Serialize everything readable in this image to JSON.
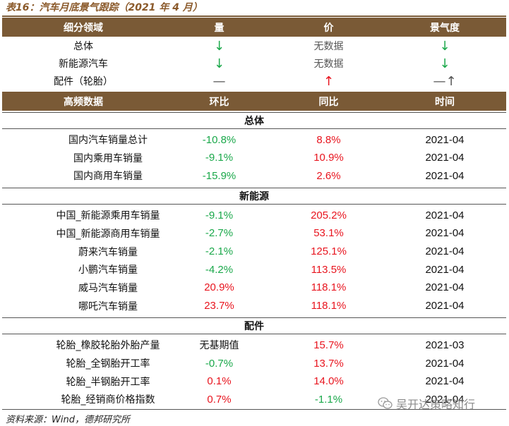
{
  "title": "表16：汽车月底景气跟踪（2021 年 4 月）",
  "top_header": [
    "细分领域",
    "量",
    "价",
    "景气度"
  ],
  "top_rows": [
    {
      "label": "总体",
      "volume": "↓",
      "volume_color": "green",
      "price": "无数据",
      "price_color": "gray",
      "boom": "↓",
      "boom_color": "green"
    },
    {
      "label": "新能源汽车",
      "volume": "↓",
      "volume_color": "green",
      "price": "无数据",
      "price_color": "gray",
      "boom": "↓",
      "boom_color": "green"
    },
    {
      "label": "配件（轮胎）",
      "volume": "—",
      "volume_color": "gray",
      "price": "↑",
      "price_color": "red",
      "boom": "—↑",
      "boom_color": "gray"
    }
  ],
  "freq_header": [
    "高频数据",
    "环比",
    "同比",
    "时间"
  ],
  "sections": [
    {
      "name": "总体",
      "rows": [
        {
          "label": "国内汽车销量总计",
          "mom": "-10.8%",
          "mom_color": "green",
          "yoy": "8.8%",
          "yoy_color": "red",
          "time": "2021-04"
        },
        {
          "label": "国内乘用车销量",
          "mom": "-9.1%",
          "mom_color": "green",
          "yoy": "10.9%",
          "yoy_color": "red",
          "time": "2021-04"
        },
        {
          "label": "国内商用车销量",
          "mom": "-15.9%",
          "mom_color": "green",
          "yoy": "2.6%",
          "yoy_color": "red",
          "time": "2021-04"
        }
      ]
    },
    {
      "name": "新能源",
      "rows": [
        {
          "label": "中国_新能源乘用车销量",
          "mom": "-9.1%",
          "mom_color": "green",
          "yoy": "205.2%",
          "yoy_color": "red",
          "time": "2021-04"
        },
        {
          "label": "中国_新能源商用车销量",
          "mom": "-2.7%",
          "mom_color": "green",
          "yoy": "53.1%",
          "yoy_color": "red",
          "time": "2021-04"
        },
        {
          "label": "蔚来汽车销量",
          "mom": "-2.1%",
          "mom_color": "green",
          "yoy": "125.1%",
          "yoy_color": "red",
          "time": "2021-04"
        },
        {
          "label": "小鹏汽车销量",
          "mom": "-4.2%",
          "mom_color": "green",
          "yoy": "113.5%",
          "yoy_color": "red",
          "time": "2021-04"
        },
        {
          "label": "威马汽车销量",
          "mom": "20.9%",
          "mom_color": "red",
          "yoy": "118.1%",
          "yoy_color": "red",
          "time": "2021-04"
        },
        {
          "label": "哪吒汽车销量",
          "mom": "23.7%",
          "mom_color": "red",
          "yoy": "118.1%",
          "yoy_color": "red",
          "time": "2021-04"
        }
      ]
    },
    {
      "name": "配件",
      "rows": [
        {
          "label": "轮胎_橡胶轮胎外胎产量",
          "mom": "无基期值",
          "mom_color": "plain",
          "yoy": "15.7%",
          "yoy_color": "red",
          "time": "2021-03"
        },
        {
          "label": "轮胎_全钢胎开工率",
          "mom": "-0.7%",
          "mom_color": "green",
          "yoy": "13.7%",
          "yoy_color": "red",
          "time": "2021-04"
        },
        {
          "label": "轮胎_半钢胎开工率",
          "mom": "0.1%",
          "mom_color": "red",
          "yoy": "14.0%",
          "yoy_color": "red",
          "time": "2021-04"
        },
        {
          "label": "轮胎_经销商价格指数",
          "mom": "0.7%",
          "mom_color": "red",
          "yoy": "-1.1%",
          "yoy_color": "green",
          "time": "2021-04"
        }
      ]
    }
  ],
  "source": "资料来源：Wind，德邦研究所",
  "watermark": "吴开达策略知行",
  "watermark_icon": "wechat-icon"
}
